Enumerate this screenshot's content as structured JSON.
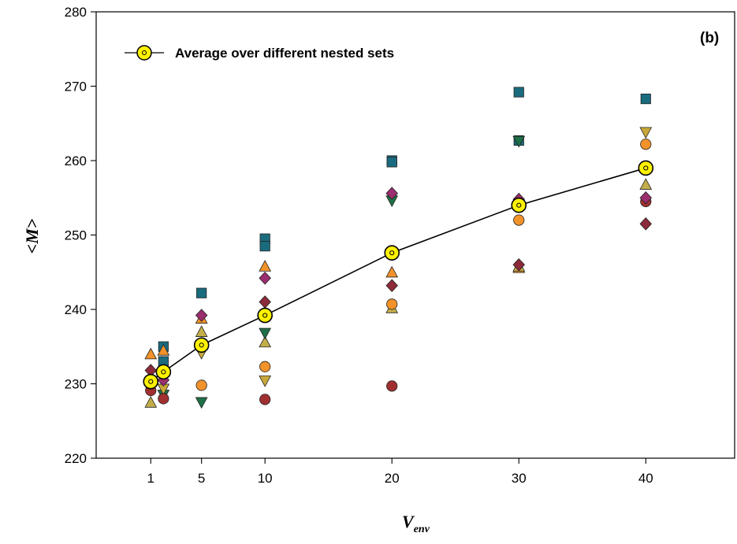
{
  "chart_data": {
    "type": "scatter",
    "panel_label": "(b)",
    "xlabel": {
      "main": "V",
      "sub": "env"
    },
    "ylabel": "<M>",
    "xlim": [
      -3.3,
      47
    ],
    "ylim": [
      220,
      280
    ],
    "x_ticks": [
      1,
      5,
      10,
      20,
      30,
      40
    ],
    "y_ticks": [
      220,
      230,
      240,
      250,
      260,
      270,
      280
    ],
    "grid": false,
    "legend": {
      "position": "top-left",
      "entries": [
        "Average over different nested sets"
      ]
    },
    "colors": {
      "teal": "#1a6b7d",
      "orange": "#f2922a",
      "gold": "#c9a83a",
      "darkred": "#8b2a3a",
      "magenta": "#9a2e6e",
      "green": "#1e7048",
      "olive": "#c4ae4a",
      "crimson": "#a03030",
      "average_fill": "#fff200",
      "average_line": "#000000"
    },
    "average_series": {
      "name": "Average over different nested sets",
      "x": [
        1,
        2,
        5,
        10,
        20,
        30,
        40
      ],
      "y": [
        230.3,
        231.6,
        235.2,
        239.2,
        247.6,
        254.0,
        259.0
      ]
    },
    "series": [
      {
        "marker": "square",
        "color": "teal",
        "x": [
          2,
          2,
          5,
          10,
          10,
          20,
          20,
          30,
          30,
          40
        ],
        "y": [
          235.0,
          233.0,
          242.2,
          249.5,
          248.5,
          260.0,
          259.8,
          269.2,
          262.7,
          268.3
        ]
      },
      {
        "marker": "triangle-up",
        "color": "orange",
        "x": [
          1,
          2,
          5,
          10,
          20,
          30
        ],
        "y": [
          234.0,
          234.5,
          238.8,
          245.8,
          245.0,
          245.6
        ]
      },
      {
        "marker": "triangle-up",
        "color": "olive",
        "x": [
          1,
          5,
          10,
          20,
          30,
          40
        ],
        "y": [
          227.5,
          237.0,
          235.6,
          240.2,
          245.8,
          256.8
        ]
      },
      {
        "marker": "triangle-down",
        "color": "green",
        "x": [
          2,
          5,
          10,
          20,
          30
        ],
        "y": [
          228.5,
          227.5,
          236.8,
          254.6,
          262.6
        ]
      },
      {
        "marker": "triangle-down",
        "color": "gold",
        "x": [
          2,
          5,
          10,
          40
        ],
        "y": [
          229.3,
          234.1,
          230.4,
          263.8
        ]
      },
      {
        "marker": "circle",
        "color": "orange",
        "x": [
          5,
          10,
          20,
          30,
          40
        ],
        "y": [
          229.8,
          232.3,
          240.7,
          252.0,
          262.2
        ]
      },
      {
        "marker": "circle",
        "color": "crimson",
        "x": [
          1,
          2,
          10,
          20,
          40
        ],
        "y": [
          229.1,
          228.0,
          227.9,
          229.7,
          254.5
        ]
      },
      {
        "marker": "diamond",
        "color": "darkred",
        "x": [
          1,
          10,
          20,
          30,
          40
        ],
        "y": [
          231.8,
          241.0,
          243.2,
          246.0,
          251.5
        ]
      },
      {
        "marker": "diamond",
        "color": "magenta",
        "x": [
          2,
          5,
          10,
          20,
          30,
          40
        ],
        "y": [
          230.5,
          239.2,
          244.2,
          255.6,
          254.8,
          255.0
        ]
      }
    ]
  }
}
